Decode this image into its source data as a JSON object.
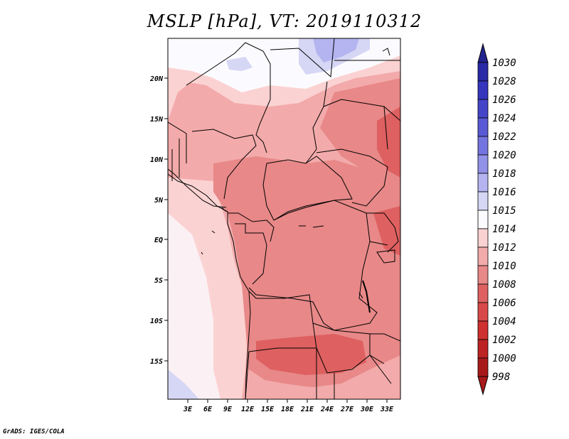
{
  "title": "MSLP [hPa], VT: 2019110312",
  "footer": "GrADS: IGES/COLA",
  "map": {
    "lon_ticks": [
      "3E",
      "6E",
      "9E",
      "12E",
      "15E",
      "18E",
      "21E",
      "24E",
      "27E",
      "30E",
      "33E"
    ],
    "lat_ticks": [
      "20N",
      "15N",
      "10N",
      "5N",
      "EQ",
      "5S",
      "10S",
      "15S"
    ]
  },
  "colorbar": {
    "levels": [
      "1030",
      "1028",
      "1026",
      "1024",
      "1022",
      "1020",
      "1018",
      "1016",
      "1015",
      "1014",
      "1012",
      "1010",
      "1008",
      "1006",
      "1004",
      "1002",
      "1000",
      "998"
    ],
    "colors": {
      "1030": "#23238f",
      "1028": "#2a2aa6",
      "1026": "#3535bd",
      "1024": "#4545c9",
      "1022": "#5a5ad6",
      "1020": "#7474e0",
      "1018": "#9191e8",
      "1016": "#b4b4f0",
      "1015": "#d6d6f5",
      "1014": "#fbfbff",
      "1012": "#fbd2d2",
      "1010": "#f3aaaa",
      "1008": "#e88888",
      "1006": "#de6060",
      "1004": "#d84848",
      "1002": "#cf3030",
      "1000": "#bd2323",
      "998": "#a81a1a"
    }
  }
}
